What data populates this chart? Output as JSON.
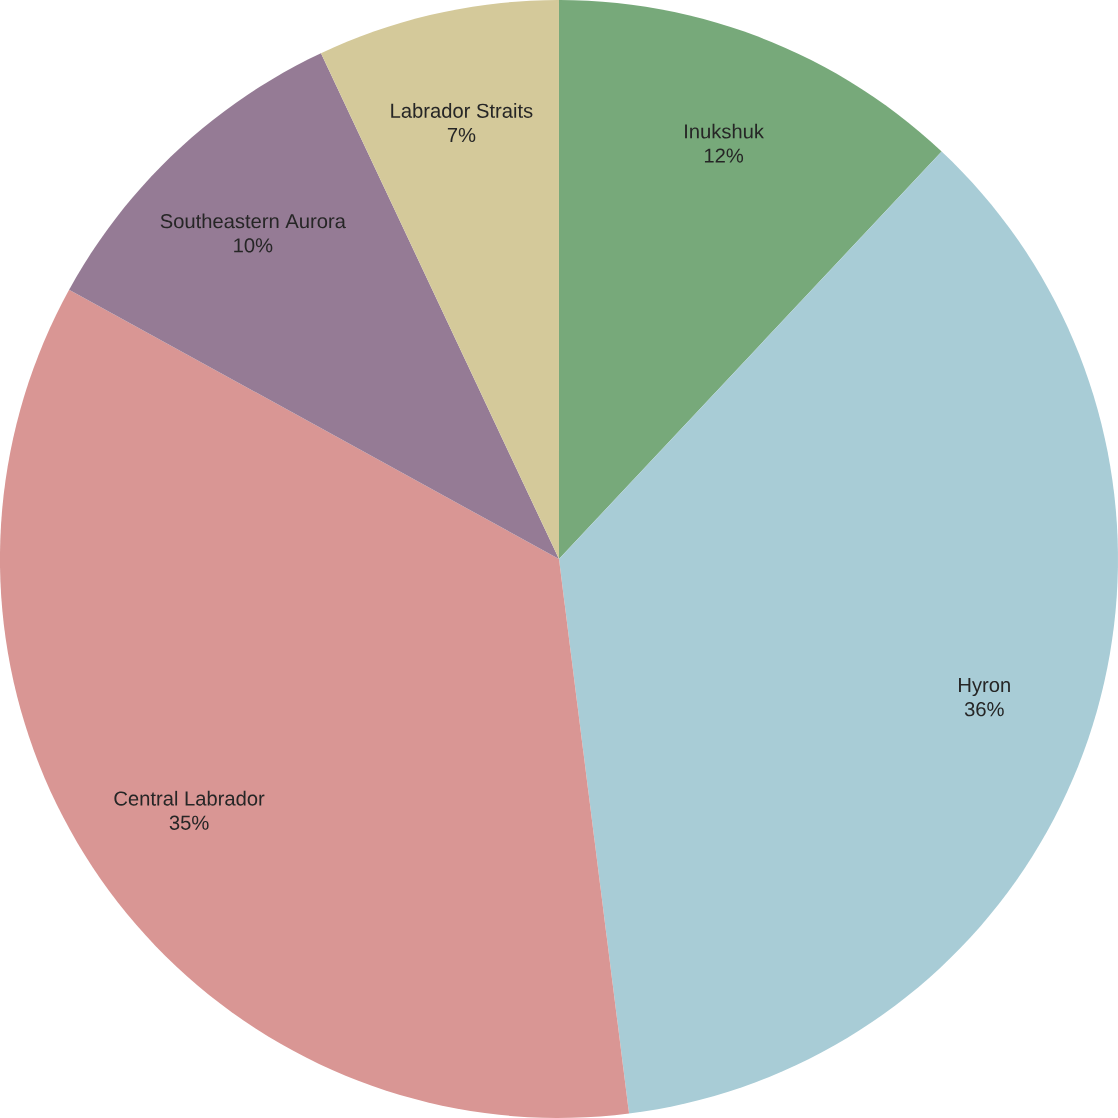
{
  "chart_data": {
    "type": "pie",
    "categories": [
      "Inukshuk",
      "Hyron",
      "Central Labrador",
      "Southeastern Aurora",
      "Labrador Straits"
    ],
    "values": [
      12,
      36,
      35,
      10,
      7
    ],
    "value_labels": [
      "12%",
      "36%",
      "35%",
      "10%",
      "7%"
    ],
    "colors": [
      "#77a97a",
      "#a8ccd6",
      "#d99694",
      "#957b95",
      "#d4c99a"
    ]
  }
}
